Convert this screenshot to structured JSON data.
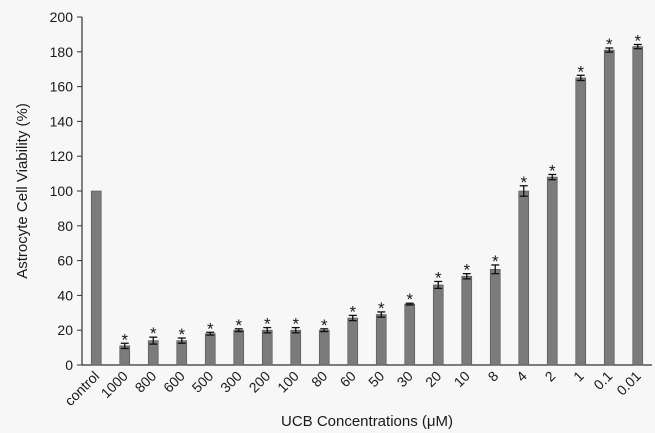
{
  "chart_data": {
    "type": "bar",
    "title": "",
    "xlabel": "UCB Concentrations (μM)",
    "ylabel": "Astrocyte Cell Viability (%)",
    "ylim": [
      0,
      200
    ],
    "yticks": [
      0,
      20,
      40,
      60,
      80,
      100,
      120,
      140,
      160,
      180,
      200
    ],
    "grid": false,
    "bar_color": "#7b7b7b",
    "categories": [
      "control",
      "1000",
      "800",
      "600",
      "500",
      "300",
      "200",
      "100",
      "80",
      "60",
      "50",
      "30",
      "20",
      "10",
      "8",
      "4",
      "2",
      "1",
      "0.1",
      "0.01"
    ],
    "values": [
      100,
      11,
      14,
      14,
      18,
      20,
      20,
      20,
      20,
      27,
      29,
      35,
      46,
      51,
      55,
      100,
      108,
      165,
      181,
      183
    ],
    "errors": [
      0,
      1.5,
      2,
      1.5,
      0.8,
      0.8,
      1.5,
      1.5,
      0.8,
      1.5,
      1.5,
      0.5,
      2,
      1.5,
      2.5,
      3,
      1.5,
      1.5,
      1.2,
      1.2
    ],
    "annotations": [
      "",
      "*",
      "*",
      "*",
      "*",
      "*",
      "*",
      "*",
      "*",
      "*",
      "*",
      "*",
      "*",
      "*",
      "*",
      "*",
      "*",
      "*",
      "*",
      "*"
    ]
  }
}
